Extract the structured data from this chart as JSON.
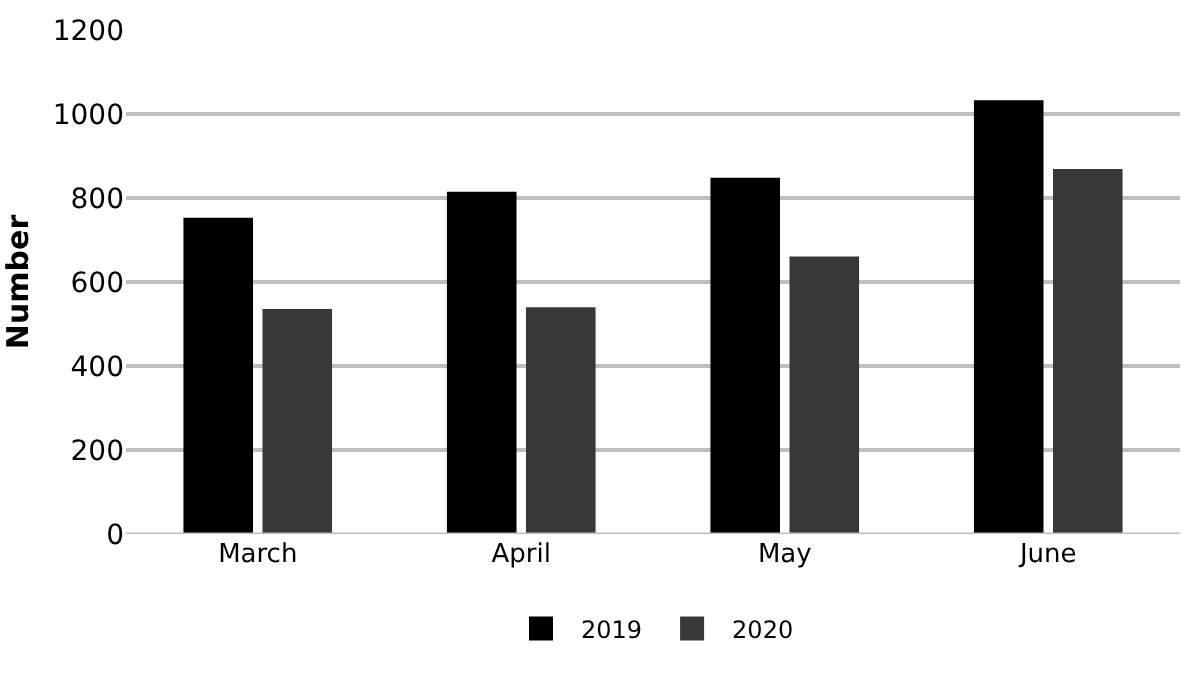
{
  "chart_data": {
    "type": "bar",
    "ylabel": "Number",
    "categories": [
      "March",
      "April",
      "May",
      "June"
    ],
    "series": [
      {
        "name": "2019",
        "color": "#000000",
        "values": [
          753,
          815,
          848,
          1033
        ]
      },
      {
        "name": "2020",
        "color": "#383838",
        "values": [
          536,
          540,
          661,
          869
        ]
      }
    ],
    "ylim": [
      0,
      1200
    ],
    "yticks": [
      0,
      200,
      400,
      600,
      800,
      1000,
      1200
    ],
    "grid": "y",
    "legend": "bottom"
  }
}
